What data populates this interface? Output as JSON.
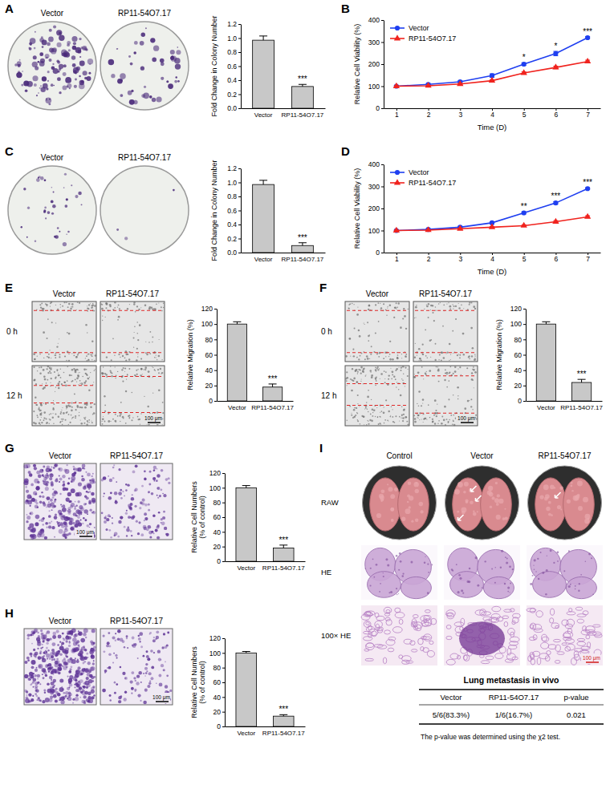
{
  "chart_data": [
    {
      "type": "bar",
      "categories": [
        "Vector",
        "RP11-54O7.17"
      ],
      "values": [
        0.97,
        0.31
      ],
      "errors": [
        0.06,
        0.03
      ],
      "color": "#c8c8c8",
      "ylabel": "Fold Change in Colony Number",
      "ylim": [
        0,
        1.2
      ],
      "yticks": [
        {
          "value": 0,
          "label": "0.0"
        },
        {
          "value": 0.2,
          "label": "0.2"
        },
        {
          "value": 0.4,
          "label": "0.4"
        },
        {
          "value": 0.6,
          "label": "0.6"
        },
        {
          "value": 0.8,
          "label": "0.8"
        },
        {
          "value": 1,
          "label": "1.0"
        },
        {
          "value": 1.2,
          "label": "1.2"
        }
      ],
      "significance": [
        null,
        "***"
      ]
    },
    {
      "panel": "B",
      "type": "line",
      "x": [
        1,
        2,
        3,
        4,
        5,
        6,
        7
      ],
      "series": [
        {
          "name": "Vector",
          "color": "#1f3ff0",
          "marker": "circle",
          "values": [
            100,
            108,
            120,
            148,
            200,
            248,
            320
          ],
          "errors": [
            3,
            4,
            4,
            8,
            6,
            10,
            5
          ]
        },
        {
          "name": "RP11-54O7.17",
          "color": "#f0231e",
          "marker": "triangle",
          "values": [
            100,
            102,
            110,
            125,
            160,
            185,
            212
          ],
          "errors": [
            2,
            3,
            3,
            4,
            5,
            6,
            6
          ]
        }
      ],
      "xlabel": "Time (D)",
      "ylabel": "Relative Cell Viability (%)",
      "xlim": [
        0.6,
        7.4
      ],
      "xticks": [
        1,
        2,
        3,
        4,
        5,
        6,
        7
      ],
      "ylim": [
        0,
        400
      ],
      "yticks": [
        0,
        100,
        200,
        300,
        400
      ],
      "legend": "upper left",
      "significance": [
        null,
        null,
        null,
        null,
        "*",
        "*",
        "***"
      ]
    },
    {
      "type": "bar",
      "categories": [
        "Vector",
        "RP11-54O7.17"
      ],
      "values": [
        0.97,
        0.1
      ],
      "errors": [
        0.06,
        0.04
      ],
      "color": "#c8c8c8",
      "ylabel": "Fold Change in Colony Number",
      "ylim": [
        0,
        1.2
      ],
      "yticks": [
        {
          "value": 0,
          "label": "0.0"
        },
        {
          "value": 0.2,
          "label": "0.2"
        },
        {
          "value": 0.4,
          "label": "0.4"
        },
        {
          "value": 0.6,
          "label": "0.6"
        },
        {
          "value": 0.8,
          "label": "0.8"
        },
        {
          "value": 1,
          "label": "1.0"
        },
        {
          "value": 1.2,
          "label": "1.2"
        }
      ],
      "significance": [
        null,
        "***"
      ]
    },
    {
      "panel": "D",
      "type": "line",
      "x": [
        1,
        2,
        3,
        4,
        5,
        6,
        7
      ],
      "series": [
        {
          "name": "Vector",
          "color": "#1f3ff0",
          "marker": "circle",
          "values": [
            100,
            105,
            115,
            135,
            180,
            225,
            290
          ],
          "errors": [
            2,
            3,
            4,
            5,
            5,
            6,
            4
          ]
        },
        {
          "name": "RP11-54O7.17",
          "color": "#f0231e",
          "marker": "triangle",
          "values": [
            100,
            102,
            108,
            115,
            122,
            140,
            162
          ],
          "errors": [
            2,
            2,
            3,
            3,
            4,
            5,
            5
          ]
        }
      ],
      "xlabel": "Time (D)",
      "ylabel": "Relative Cell Viability (%)",
      "xlim": [
        0.6,
        7.4
      ],
      "xticks": [
        1,
        2,
        3,
        4,
        5,
        6,
        7
      ],
      "ylim": [
        0,
        400
      ],
      "yticks": [
        0,
        100,
        200,
        300,
        400
      ],
      "legend": "upper left",
      "significance": [
        null,
        null,
        null,
        null,
        "**",
        "***",
        "***"
      ]
    },
    {
      "type": "bar",
      "categories": [
        "Vector",
        "RP11-54O7.17"
      ],
      "values": [
        100,
        18
      ],
      "errors": [
        3,
        4
      ],
      "color": "#c8c8c8",
      "ylabel": "Relative Migration (%)",
      "ylim": [
        0,
        120
      ],
      "yticks": [
        0,
        20,
        40,
        60,
        80,
        100,
        120
      ],
      "significance": [
        null,
        "***"
      ]
    },
    {
      "type": "bar",
      "categories": [
        "Vector",
        "RP11-54O7.17"
      ],
      "values": [
        100,
        24
      ],
      "errors": [
        3,
        4
      ],
      "color": "#c8c8c8",
      "ylabel": "Relative Migration (%)",
      "ylim": [
        0,
        120
      ],
      "yticks": [
        0,
        20,
        40,
        60,
        80,
        100,
        120
      ],
      "significance": [
        null,
        "***"
      ]
    },
    {
      "type": "bar",
      "categories": [
        "Vector",
        "RP11-54O7.17"
      ],
      "values": [
        100,
        18
      ],
      "errors": [
        3,
        4
      ],
      "color": "#c8c8c8",
      "ylabel": "Relative Cell Numbers (% of control)",
      "ylim": [
        0,
        120
      ],
      "yticks": [
        0,
        20,
        40,
        60,
        80,
        100,
        120
      ],
      "significance": [
        null,
        "***"
      ]
    },
    {
      "type": "bar",
      "categories": [
        "Vector",
        "RP11-54O7.17"
      ],
      "values": [
        100,
        14
      ],
      "errors": [
        2,
        2
      ],
      "color": "#c8c8c8",
      "ylabel": "Relative Cell Numbers (% of control)",
      "ylim": [
        0,
        120
      ],
      "yticks": [
        0,
        20,
        40,
        60,
        80,
        100,
        120
      ],
      "significance": [
        null,
        "***"
      ]
    }
  ],
  "image_panels": [
    {
      "label": "A",
      "columns": [
        "Vector",
        "RP11-54O7.17"
      ]
    },
    {
      "label": "C",
      "columns": [
        "Vector",
        "RP11-54O7.17"
      ]
    },
    {
      "label": "E",
      "columns": [
        "Vector",
        "RP11-54O7.17"
      ],
      "rows": [
        "0 h",
        "12 h"
      ],
      "scale_bar": "100 μm"
    },
    {
      "label": "F",
      "columns": [
        "Vector",
        "RP11-54O7.17"
      ],
      "rows": [
        "0 h",
        "12 h"
      ],
      "scale_bar": "100 μm"
    },
    {
      "label": "G",
      "columns": [
        "Vector",
        "RP11-54O7.17"
      ],
      "scale_bar": "100 μm"
    },
    {
      "label": "H",
      "columns": [
        "Vector",
        "RP11-54O7.17"
      ],
      "scale_bar": "100 μm"
    },
    {
      "label": "I",
      "columns": [
        "Control",
        "Vector",
        "RP11-54O7.17"
      ],
      "rows": [
        "RAW",
        "HE",
        "100× HE"
      ],
      "scale_bar": "100 μm",
      "table": {
        "title": "Lung metastasis in vivo",
        "header": [
          "Vector",
          "RP11-54O7.17",
          "p-value"
        ],
        "rows": [
          [
            "5/6(83.3%)",
            "1/6(16.7%)",
            "0.021"
          ]
        ],
        "note": "The p-value was determined using the χ2 test."
      }
    }
  ]
}
